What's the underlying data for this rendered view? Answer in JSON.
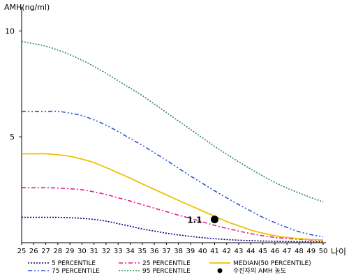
{
  "chart_data": {
    "type": "line",
    "ylabel": "AMH(ng/ml)",
    "xlabel": "나이",
    "ylim": [
      0,
      11
    ],
    "xlim": [
      25,
      50
    ],
    "yticks": [
      5,
      10
    ],
    "x": [
      25,
      26,
      27,
      28,
      29,
      30,
      31,
      32,
      33,
      34,
      35,
      36,
      37,
      38,
      39,
      40,
      41,
      42,
      43,
      44,
      45,
      46,
      47,
      48,
      49,
      50
    ],
    "grid": false,
    "legend_position": "bottom",
    "series": [
      {
        "name": "5 PERCENTILE",
        "color": "#000080",
        "style": "dotted",
        "values": [
          1.2,
          1.2,
          1.2,
          1.2,
          1.18,
          1.15,
          1.1,
          1.02,
          0.9,
          0.78,
          0.65,
          0.55,
          0.45,
          0.37,
          0.3,
          0.24,
          0.19,
          0.15,
          0.12,
          0.1,
          0.08,
          0.07,
          0.06,
          0.05,
          0.05,
          0.05
        ]
      },
      {
        "name": "25 PERCENTILE",
        "color": "#e0208c",
        "style": "dashdot",
        "values": [
          2.6,
          2.6,
          2.6,
          2.58,
          2.55,
          2.5,
          2.4,
          2.28,
          2.12,
          1.97,
          1.8,
          1.63,
          1.47,
          1.3,
          1.15,
          0.98,
          0.82,
          0.68,
          0.55,
          0.43,
          0.33,
          0.25,
          0.2,
          0.16,
          0.13,
          0.12
        ]
      },
      {
        "name": "MEDIAN(50 PERCENTILE)",
        "color": "#f0c000",
        "style": "solid",
        "values": [
          4.2,
          4.2,
          4.2,
          4.15,
          4.08,
          3.95,
          3.78,
          3.55,
          3.3,
          3.05,
          2.78,
          2.52,
          2.26,
          2.0,
          1.75,
          1.5,
          1.25,
          1.0,
          0.8,
          0.6,
          0.45,
          0.33,
          0.25,
          0.19,
          0.15,
          0.13
        ]
      },
      {
        "name": "75 PERCENTILE",
        "color": "#3050d0",
        "style": "dashdotdot",
        "values": [
          6.2,
          6.2,
          6.2,
          6.2,
          6.12,
          6.0,
          5.8,
          5.55,
          5.25,
          4.92,
          4.6,
          4.25,
          3.9,
          3.52,
          3.15,
          2.8,
          2.45,
          2.12,
          1.8,
          1.5,
          1.2,
          0.95,
          0.72,
          0.52,
          0.38,
          0.28
        ]
      },
      {
        "name": "95 PERCENTILE",
        "color": "#2e8b57",
        "style": "dotted",
        "values": [
          9.5,
          9.4,
          9.28,
          9.1,
          8.88,
          8.62,
          8.32,
          8.0,
          7.65,
          7.3,
          6.95,
          6.55,
          6.15,
          5.75,
          5.35,
          4.95,
          4.55,
          4.18,
          3.82,
          3.48,
          3.15,
          2.85,
          2.58,
          2.35,
          2.13,
          1.93
        ]
      }
    ],
    "marker": {
      "name": "수진자의 AMH 농도",
      "x": 41,
      "y": 1.1,
      "label": "1.1",
      "color": "#000000"
    },
    "legend_order": [
      "5 PERCENTILE",
      "25 PERCENTILE",
      "MEDIAN(50 PERCENTILE)",
      "75 PERCENTILE",
      "95 PERCENTILE",
      "수진자의 AMH 농도"
    ]
  }
}
